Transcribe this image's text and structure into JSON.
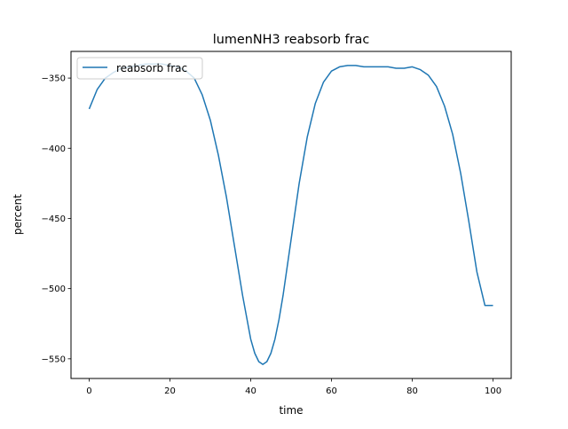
{
  "chart_data": {
    "type": "line",
    "title": "lumenNH3 reabsorb frac",
    "xlabel": "time",
    "ylabel": "percent",
    "xlim": [
      -4.5,
      104.5
    ],
    "ylim": [
      -564,
      -331
    ],
    "xticks": [
      0,
      20,
      40,
      60,
      80,
      100
    ],
    "yticks": [
      -550,
      -500,
      -450,
      -400,
      -350
    ],
    "xtick_labels": [
      "0",
      "20",
      "40",
      "60",
      "80",
      "100"
    ],
    "ytick_labels": [
      "−550",
      "−500",
      "−450",
      "−400",
      "−350"
    ],
    "grid": false,
    "legend_position": "upper left",
    "series": [
      {
        "name": "reabsorb frac",
        "color": "#1f77b4",
        "x": [
          0,
          2,
          4,
          6,
          8,
          10,
          12,
          14,
          16,
          18,
          20,
          22,
          24,
          26,
          28,
          30,
          32,
          34,
          36,
          38,
          40,
          41,
          42,
          43,
          44,
          45,
          46,
          47,
          48,
          50,
          52,
          54,
          56,
          58,
          60,
          62,
          64,
          66,
          68,
          70,
          72,
          74,
          76,
          78,
          80,
          82,
          84,
          86,
          88,
          90,
          92,
          94,
          96,
          98,
          100
        ],
        "y": [
          -372,
          -358,
          -350,
          -346,
          -343,
          -342,
          -341,
          -340,
          -340,
          -340,
          -341,
          -342,
          -345,
          -350,
          -362,
          -380,
          -405,
          -435,
          -470,
          -505,
          -536,
          -546,
          -552,
          -554,
          -552,
          -546,
          -536,
          -522,
          -505,
          -465,
          -425,
          -392,
          -368,
          -353,
          -345,
          -342,
          -341,
          -341,
          -342,
          -342,
          -342,
          -342,
          -343,
          -343,
          -342,
          -344,
          -348,
          -356,
          -370,
          -390,
          -418,
          -452,
          -488,
          -512,
          -512
        ]
      }
    ]
  }
}
